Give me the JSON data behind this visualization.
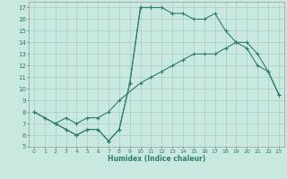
{
  "xlabel": "Humidex (Indice chaleur)",
  "bg_color": "#c8e8e0",
  "grid_color": "#a8ccc4",
  "line_color": "#2e7d6e",
  "xlim": [
    -0.5,
    23.5
  ],
  "ylim": [
    5,
    17.5
  ],
  "xticks": [
    0,
    1,
    2,
    3,
    4,
    5,
    6,
    7,
    8,
    9,
    10,
    11,
    12,
    13,
    14,
    15,
    16,
    17,
    18,
    19,
    20,
    21,
    22,
    23
  ],
  "yticks": [
    5,
    6,
    7,
    8,
    9,
    10,
    11,
    12,
    13,
    14,
    15,
    16,
    17
  ],
  "line1_x": [
    0,
    1,
    2,
    3,
    4,
    5,
    6,
    7,
    8,
    9,
    10,
    11,
    12,
    13,
    14,
    15,
    16,
    17,
    18,
    19,
    20,
    21,
    22,
    23
  ],
  "line1_y": [
    8,
    7.5,
    7,
    6.5,
    6,
    6.5,
    6.5,
    5.5,
    6.5,
    10.5,
    17,
    17,
    17,
    16.5,
    16.5,
    16,
    16,
    16.5,
    15,
    14,
    13.5,
    12,
    11.5,
    9.5
  ],
  "line2_x": [
    0,
    1,
    2,
    3,
    4,
    5,
    6,
    7,
    8,
    10,
    11,
    12,
    13,
    14,
    15,
    16,
    17,
    18,
    19,
    20,
    21,
    22,
    23
  ],
  "line2_y": [
    8,
    7.5,
    7,
    7.5,
    7,
    7.5,
    7.5,
    8,
    9,
    10.5,
    11,
    11.5,
    12,
    12.5,
    13,
    13,
    13,
    13.5,
    14,
    14,
    13,
    11.5,
    9.5
  ],
  "line3_x": [
    2,
    3,
    4,
    5,
    6,
    7,
    8,
    9,
    10,
    11
  ],
  "line3_y": [
    7,
    6.5,
    6,
    6.5,
    6.5,
    5.5,
    6.5,
    10.5,
    17,
    17
  ]
}
